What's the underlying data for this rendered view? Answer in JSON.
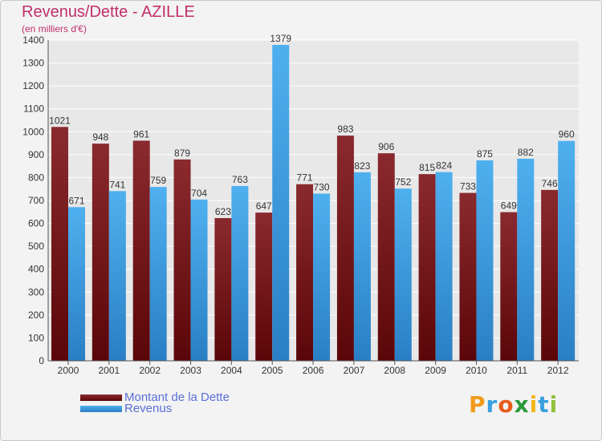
{
  "title": "Revenus/Dette - AZILLE",
  "subtitle": "(en milliers d'€)",
  "logo": {
    "letters": [
      {
        "char": "P",
        "color": "#f29a1a"
      },
      {
        "char": "r",
        "color": "#3aa0df"
      },
      {
        "char": "o",
        "color": "#e85c1c"
      },
      {
        "char": "x",
        "color": "#2a9a3a"
      },
      {
        "char": "i",
        "color": "#f2b81a"
      },
      {
        "char": "t",
        "color": "#3aa0df"
      },
      {
        "char": "i",
        "color": "#8fc23a"
      }
    ]
  },
  "colors": {
    "dette": "#8a1e22",
    "revenus": "#3c9de0",
    "axis_text": "#333333",
    "grid": "#ffffff"
  },
  "chart_data": {
    "type": "bar",
    "categories": [
      "2000",
      "2001",
      "2002",
      "2003",
      "2004",
      "2005",
      "2006",
      "2007",
      "2008",
      "2009",
      "2010",
      "2011",
      "2012"
    ],
    "series": [
      {
        "name": "Montant de la Dette",
        "values": [
          1021,
          948,
          961,
          879,
          623,
          647,
          771,
          983,
          906,
          815,
          733,
          649,
          746
        ]
      },
      {
        "name": "Revenus",
        "values": [
          671,
          741,
          759,
          704,
          763,
          1379,
          730,
          823,
          752,
          824,
          875,
          882,
          960
        ]
      }
    ],
    "ylim": [
      0,
      1400
    ],
    "yticks": [
      0,
      100,
      200,
      300,
      400,
      500,
      600,
      700,
      800,
      900,
      1000,
      1100,
      1200,
      1300,
      1400
    ],
    "grid": true,
    "legend_position": "bottom-left"
  }
}
